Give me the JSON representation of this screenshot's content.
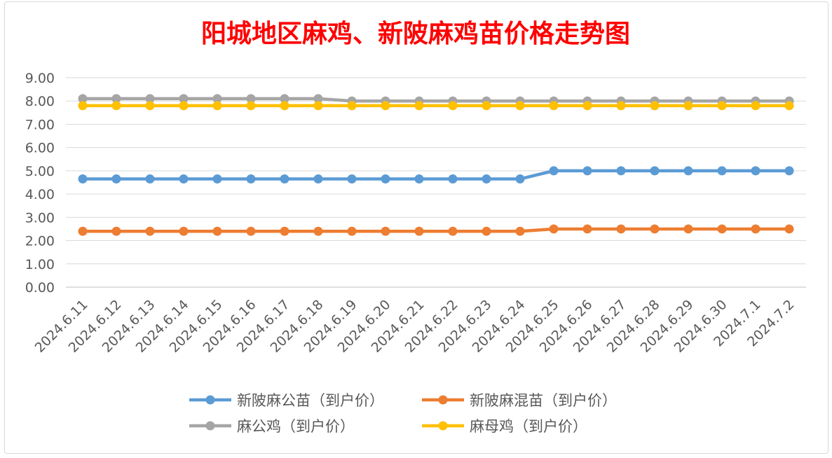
{
  "chart_data": {
    "type": "line",
    "title": "阳城地区麻鸡、新陂麻鸡苗价格走势图",
    "categories": [
      "2024.6.11",
      "2024.6.12",
      "2024.6.13",
      "2024.6.14",
      "2024.6.15",
      "2024.6.16",
      "2024.6.17",
      "2024.6.18",
      "2024.6.19",
      "2024.6.20",
      "2024.6.21",
      "2024.6.22",
      "2024.6.23",
      "2024.6.24",
      "2024.6.25",
      "2024.6.26",
      "2024.6.27",
      "2024.6.28",
      "2024.6.29",
      "2024.6.30",
      "2024.7.1",
      "2024.7.2"
    ],
    "ylim": [
      0,
      9
    ],
    "yticks": [
      "0.00",
      "1.00",
      "2.00",
      "3.00",
      "4.00",
      "5.00",
      "6.00",
      "7.00",
      "8.00",
      "9.00"
    ],
    "grid": true,
    "legend_position": "bottom",
    "series": [
      {
        "name": "新陂麻公苗（到户价）",
        "color": "#5b9bd5",
        "values": [
          4.65,
          4.65,
          4.65,
          4.65,
          4.65,
          4.65,
          4.65,
          4.65,
          4.65,
          4.65,
          4.65,
          4.65,
          4.65,
          4.65,
          5.0,
          5.0,
          5.0,
          5.0,
          5.0,
          5.0,
          5.0,
          5.0
        ]
      },
      {
        "name": "新陂麻混苗（到户价）",
        "color": "#ed7d31",
        "values": [
          2.4,
          2.4,
          2.4,
          2.4,
          2.4,
          2.4,
          2.4,
          2.4,
          2.4,
          2.4,
          2.4,
          2.4,
          2.4,
          2.4,
          2.5,
          2.5,
          2.5,
          2.5,
          2.5,
          2.5,
          2.5,
          2.5
        ]
      },
      {
        "name": "麻公鸡（到户价）",
        "color": "#a5a5a5",
        "values": [
          8.1,
          8.1,
          8.1,
          8.1,
          8.1,
          8.1,
          8.1,
          8.1,
          8.0,
          8.0,
          8.0,
          8.0,
          8.0,
          8.0,
          8.0,
          8.0,
          8.0,
          8.0,
          8.0,
          8.0,
          8.0,
          8.0
        ]
      },
      {
        "name": "麻母鸡（到户价）",
        "color": "#ffc000",
        "values": [
          7.8,
          7.8,
          7.8,
          7.8,
          7.8,
          7.8,
          7.8,
          7.8,
          7.8,
          7.8,
          7.8,
          7.8,
          7.8,
          7.8,
          7.8,
          7.8,
          7.8,
          7.8,
          7.8,
          7.8,
          7.8,
          7.8
        ]
      }
    ]
  }
}
